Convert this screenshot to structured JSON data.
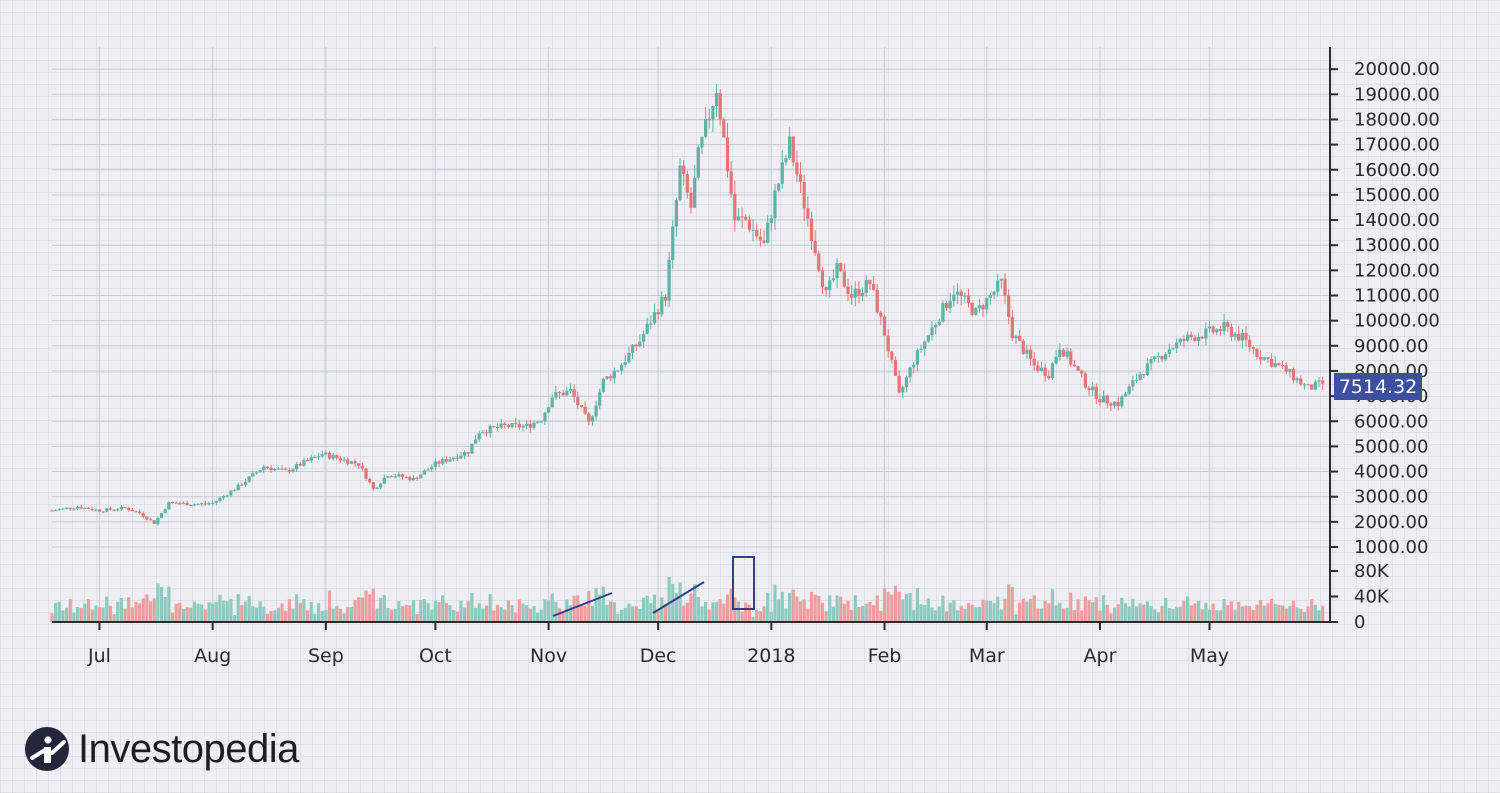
{
  "brand": {
    "name": "Investopedia"
  },
  "colors": {
    "up": "#5eb3a6",
    "down": "#e27676",
    "up_volume": "#8fcac1",
    "down_volume": "#ec9f9f",
    "grid": "#c9c9d4",
    "axis": "#2b2b2b",
    "price_tag_bg": "#3d4fa0",
    "annotation": "#2f3f8c"
  },
  "chart_data": {
    "type": "candlestick",
    "title": "",
    "price_axis": {
      "ticks": [
        "1000.00",
        "2000.00",
        "3000.00",
        "4000.00",
        "5000.00",
        "6000.00",
        "7000.00",
        "8000.00",
        "9000.00",
        "10000.00",
        "11000.00",
        "12000.00",
        "13000.00",
        "14000.00",
        "15000.00",
        "16000.00",
        "17000.00",
        "18000.00",
        "19000.00",
        "20000.00"
      ],
      "range": [
        0,
        20500
      ]
    },
    "volume_axis": {
      "ticks": [
        "0",
        "40K",
        "80K"
      ],
      "range": [
        0,
        90000
      ]
    },
    "x_axis": {
      "labels": [
        "Jul",
        "Aug",
        "Sep",
        "Oct",
        "Nov",
        "Dec",
        "2018",
        "Feb",
        "Mar",
        "Apr",
        "May"
      ]
    },
    "last_price": "7514.32",
    "price_path": [
      {
        "date": "2017-06-18",
        "price": 2450
      },
      {
        "date": "2017-06-25",
        "price": 2600
      },
      {
        "date": "2017-07-01",
        "price": 2450
      },
      {
        "date": "2017-07-08",
        "price": 2550
      },
      {
        "date": "2017-07-12",
        "price": 2350
      },
      {
        "date": "2017-07-16",
        "price": 1950
      },
      {
        "date": "2017-07-20",
        "price": 2750
      },
      {
        "date": "2017-07-28",
        "price": 2700
      },
      {
        "date": "2017-08-01",
        "price": 2750
      },
      {
        "date": "2017-08-08",
        "price": 3400
      },
      {
        "date": "2017-08-15",
        "price": 4200
      },
      {
        "date": "2017-08-21",
        "price": 4000
      },
      {
        "date": "2017-08-31",
        "price": 4700
      },
      {
        "date": "2017-09-05",
        "price": 4500
      },
      {
        "date": "2017-09-10",
        "price": 4300
      },
      {
        "date": "2017-09-14",
        "price": 3300
      },
      {
        "date": "2017-09-18",
        "price": 3900
      },
      {
        "date": "2017-09-25",
        "price": 3700
      },
      {
        "date": "2017-10-01",
        "price": 4300
      },
      {
        "date": "2017-10-10",
        "price": 4800
      },
      {
        "date": "2017-10-13",
        "price": 5600
      },
      {
        "date": "2017-10-20",
        "price": 5800
      },
      {
        "date": "2017-10-26",
        "price": 5800
      },
      {
        "date": "2017-10-30",
        "price": 6100
      },
      {
        "date": "2017-11-02",
        "price": 7000
      },
      {
        "date": "2017-11-07",
        "price": 7200
      },
      {
        "date": "2017-11-12",
        "price": 5900
      },
      {
        "date": "2017-11-16",
        "price": 7600
      },
      {
        "date": "2017-11-20",
        "price": 8100
      },
      {
        "date": "2017-11-26",
        "price": 9200
      },
      {
        "date": "2017-11-29",
        "price": 10000
      },
      {
        "date": "2017-12-03",
        "price": 11000
      },
      {
        "date": "2017-12-07",
        "price": 16000
      },
      {
        "date": "2017-12-10",
        "price": 14500
      },
      {
        "date": "2017-12-12",
        "price": 16500
      },
      {
        "date": "2017-12-17",
        "price": 19300
      },
      {
        "date": "2017-12-22",
        "price": 14000
      },
      {
        "date": "2017-12-25",
        "price": 14000
      },
      {
        "date": "2017-12-30",
        "price": 13000
      },
      {
        "date": "2018-01-02",
        "price": 15000
      },
      {
        "date": "2018-01-06",
        "price": 17000
      },
      {
        "date": "2018-01-12",
        "price": 13500
      },
      {
        "date": "2018-01-16",
        "price": 11000
      },
      {
        "date": "2018-01-19",
        "price": 12000
      },
      {
        "date": "2018-01-23",
        "price": 11000
      },
      {
        "date": "2018-01-28",
        "price": 11500
      },
      {
        "date": "2018-02-01",
        "price": 9500
      },
      {
        "date": "2018-02-05",
        "price": 7000
      },
      {
        "date": "2018-02-09",
        "price": 8400
      },
      {
        "date": "2018-02-16",
        "price": 10200
      },
      {
        "date": "2018-02-20",
        "price": 11200
      },
      {
        "date": "2018-02-26",
        "price": 10300
      },
      {
        "date": "2018-03-05",
        "price": 11500
      },
      {
        "date": "2018-03-08",
        "price": 9500
      },
      {
        "date": "2018-03-14",
        "price": 8200
      },
      {
        "date": "2018-03-18",
        "price": 7900
      },
      {
        "date": "2018-03-21",
        "price": 9000
      },
      {
        "date": "2018-03-28",
        "price": 7500
      },
      {
        "date": "2018-04-01",
        "price": 6900
      },
      {
        "date": "2018-04-06",
        "price": 6700
      },
      {
        "date": "2018-04-12",
        "price": 7900
      },
      {
        "date": "2018-04-20",
        "price": 8900
      },
      {
        "date": "2018-04-25",
        "price": 9300
      },
      {
        "date": "2018-05-05",
        "price": 9700
      },
      {
        "date": "2018-05-10",
        "price": 9300
      },
      {
        "date": "2018-05-14",
        "price": 8700
      },
      {
        "date": "2018-05-22",
        "price": 8000
      },
      {
        "date": "2018-05-28",
        "price": 7300
      },
      {
        "date": "2018-06-01",
        "price": 7500
      }
    ]
  }
}
